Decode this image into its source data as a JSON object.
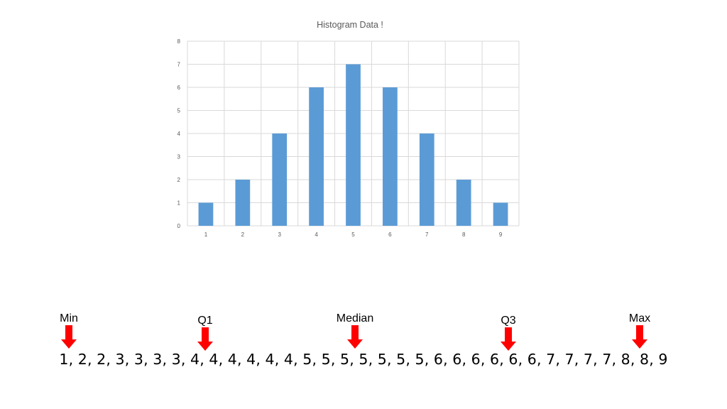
{
  "chart_data": {
    "type": "bar",
    "title": "Histogram Data !",
    "categories": [
      "1",
      "2",
      "3",
      "4",
      "5",
      "6",
      "7",
      "8",
      "9"
    ],
    "values": [
      1,
      2,
      4,
      6,
      7,
      6,
      4,
      2,
      1
    ],
    "ylim": [
      0,
      8
    ],
    "yticks": [
      "0",
      "1",
      "2",
      "3",
      "4",
      "5",
      "6",
      "7",
      "8"
    ],
    "grid": true,
    "bar_color": "#5b9bd5",
    "grid_color": "#d9d9d9"
  },
  "summary": {
    "markers": [
      {
        "label": "Min",
        "value": 1
      },
      {
        "label": "Q1",
        "value": 4
      },
      {
        "label": "Median",
        "value": 5
      },
      {
        "label": "Q3",
        "value": 6
      },
      {
        "label": "Max",
        "value": 9
      }
    ],
    "arrow_color": "#ff0000",
    "sequence": "1, 2, 2, 3, 3, 3, 3, 4, 4, 4, 4, 4, 4, 5, 5, 5, 5, 5, 5, 5, 6, 6, 6, 6, 6, 6, 7, 7, 7, 7, 8, 8, 9"
  }
}
